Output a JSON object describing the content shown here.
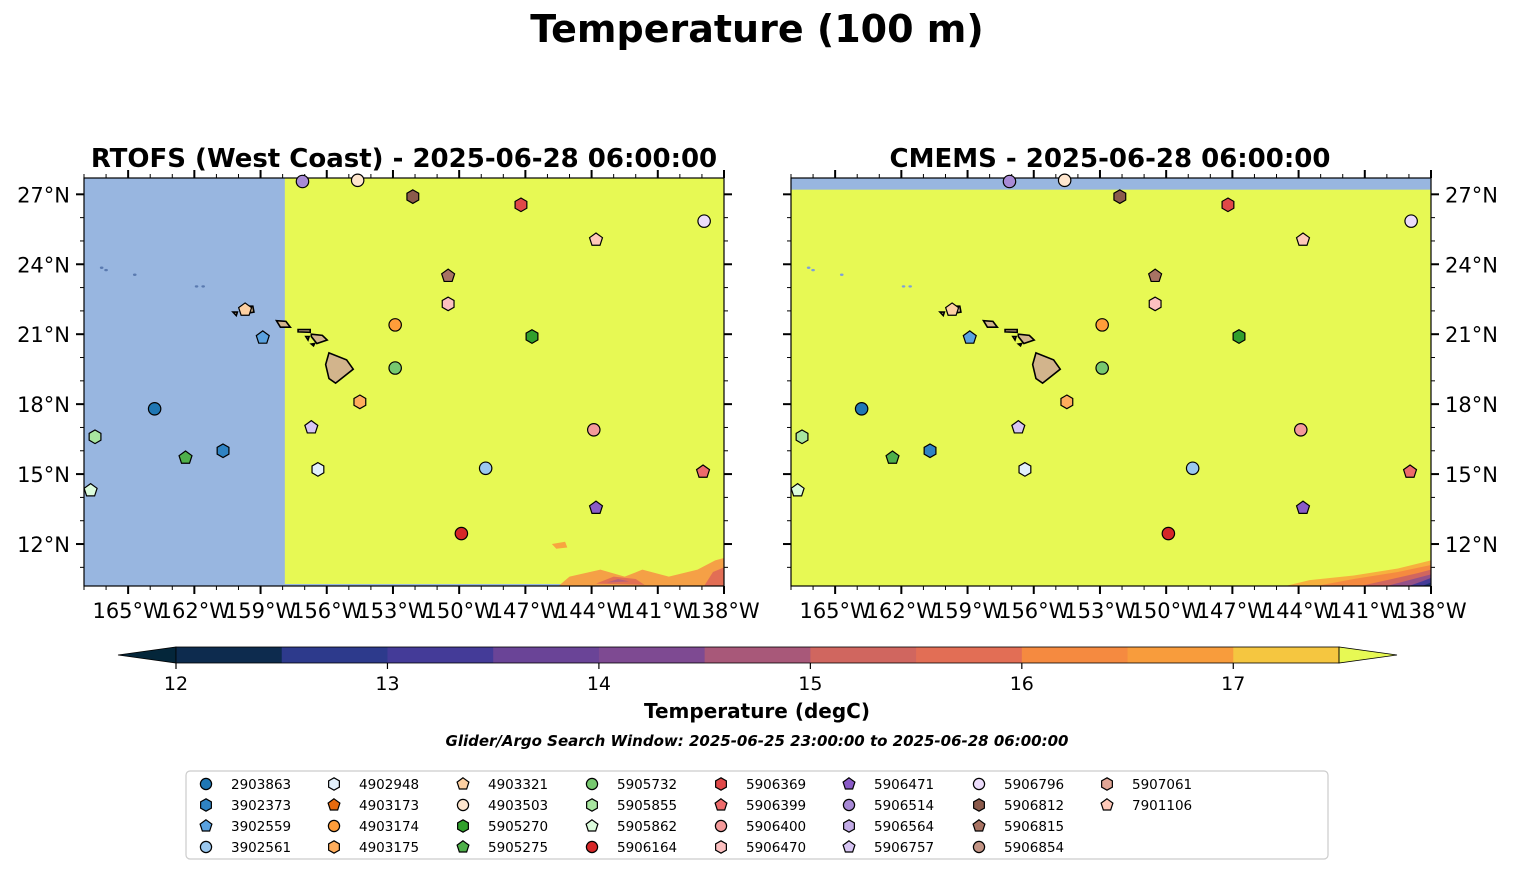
{
  "figure": {
    "title": "Temperature (100 m)",
    "search_window_label": "Glider/Argo Search Window: 2025-06-25 23:00:00 to 2025-06-28 06:00:00"
  },
  "colorbar": {
    "label": "Temperature (degC)",
    "ticks": [
      "12",
      "13",
      "14",
      "15",
      "16",
      "17"
    ],
    "range": [
      11.75,
      17.5
    ],
    "step": 0.5,
    "colors": [
      "#04263a",
      "#0d2b4e",
      "#19326f",
      "#2d3a8c",
      "#443b98",
      "#573f98",
      "#6a4497",
      "#7e4a92",
      "#945188",
      "#a85879",
      "#bd5f6e",
      "#d0665f",
      "#e26e55",
      "#ef7a48",
      "#f58a40",
      "#f89c3c",
      "#f7b03e",
      "#f5c640",
      "#e7f954"
    ],
    "over_color": "#e7f954",
    "under_color": "#04263a",
    "extend": "both"
  },
  "chart_data": [
    {
      "type": "map",
      "title": "RTOFS (West Coast) - 2025-06-28 06:00:00",
      "xlim": [
        -167,
        -138
      ],
      "ylim": [
        10.2,
        27.7
      ],
      "xticks": [
        "165°W",
        "162°W",
        "159°W",
        "156°W",
        "153°W",
        "150°W",
        "147°W",
        "144°W",
        "141°W",
        "138°W"
      ],
      "yticks": [
        "27°N",
        "24°N",
        "21°N",
        "18°N",
        "15°N",
        "12°N"
      ],
      "yaxis_side": "left",
      "no_data_color": "#98b6e0",
      "field_note": "data only east of 157.9°W; ~17.6 degC (yellow) with warmer-than-14 patches near 10-11°N, 145-138°W"
    },
    {
      "type": "map",
      "title": "CMEMS - 2025-06-28 06:00:00",
      "xlim": [
        -167,
        -138
      ],
      "ylim": [
        10.2,
        27.7
      ],
      "xticks": [
        "165°W",
        "162°W",
        "159°W",
        "156°W",
        "153°W",
        "150°W",
        "147°W",
        "144°W",
        "141°W",
        "138°W"
      ],
      "yticks": [
        "27°N",
        "24°N",
        "21°N",
        "18°N",
        "15°N",
        "12°N"
      ],
      "yaxis_side": "right",
      "no_data_color": "#98b6e0",
      "field_note": "data everywhere south of 27.2°N; ~17.6 degC (yellow) with cooler patch in SE corner"
    }
  ],
  "floats": [
    {
      "id": "2903863",
      "marker": "circle",
      "color": "#1f77b4",
      "lon": -163.8,
      "lat": 17.8
    },
    {
      "id": "3902373",
      "marker": "hexagon",
      "color": "#2f83c3",
      "lon": -160.7,
      "lat": 16.0
    },
    {
      "id": "3902559",
      "marker": "pentagon",
      "color": "#5aa2e0",
      "lon": -158.9,
      "lat": 20.85
    },
    {
      "id": "3902561",
      "marker": "circle",
      "color": "#9bc8ef",
      "lon": -148.8,
      "lat": 15.25
    },
    {
      "id": "4902948",
      "marker": "hexagon",
      "color": "#e2f0fb",
      "lon": -156.4,
      "lat": 15.2
    },
    {
      "id": "4903173",
      "marker": "pentagon",
      "color": "#e66a0e",
      "lon": null,
      "lat": null
    },
    {
      "id": "4903174",
      "marker": "circle",
      "color": "#ff9d3a",
      "lon": -152.9,
      "lat": 21.4
    },
    {
      "id": "4903175",
      "marker": "hexagon",
      "color": "#ffad5c",
      "lon": -154.5,
      "lat": 18.1
    },
    {
      "id": "4903321",
      "marker": "pentagon",
      "color": "#fdd0a2",
      "lon": -159.7,
      "lat": 22.05
    },
    {
      "id": "4903503",
      "marker": "circle",
      "color": "#fee6ce",
      "lon": -154.6,
      "lat": 27.6
    },
    {
      "id": "5905270",
      "marker": "hexagon",
      "color": "#31a02c",
      "lon": -146.7,
      "lat": 20.9
    },
    {
      "id": "5905275",
      "marker": "pentagon",
      "color": "#4fb04a",
      "lon": -162.4,
      "lat": 15.7
    },
    {
      "id": "5905732",
      "marker": "circle",
      "color": "#77c96f",
      "lon": -152.9,
      "lat": 19.55
    },
    {
      "id": "5905855",
      "marker": "hexagon",
      "color": "#a8e6a0",
      "lon": -166.5,
      "lat": 16.6
    },
    {
      "id": "5905862",
      "marker": "pentagon",
      "color": "#dcfcdc",
      "lon": -166.7,
      "lat": 14.3
    },
    {
      "id": "5906164",
      "marker": "circle",
      "color": "#d62728",
      "lon": -149.9,
      "lat": 12.45
    },
    {
      "id": "5906369",
      "marker": "hexagon",
      "color": "#e04848",
      "lon": -147.2,
      "lat": 26.55
    },
    {
      "id": "5906399",
      "marker": "pentagon",
      "color": "#ee6b6b",
      "lon": -138.95,
      "lat": 15.1
    },
    {
      "id": "5906400",
      "marker": "circle",
      "color": "#f49a9a",
      "lon": -143.9,
      "lat": 16.9
    },
    {
      "id": "5906470",
      "marker": "hexagon",
      "color": "#fcc0c0",
      "lon": -150.5,
      "lat": 22.3
    },
    {
      "id": "5906471",
      "marker": "pentagon",
      "color": "#8a5bc7",
      "lon": -143.8,
      "lat": 13.55
    },
    {
      "id": "5906514",
      "marker": "circle",
      "color": "#a88ad6",
      "lon": -157.1,
      "lat": 27.55
    },
    {
      "id": "5906564",
      "marker": "hexagon",
      "color": "#c3ace6",
      "lon": null,
      "lat": null
    },
    {
      "id": "5906757",
      "marker": "pentagon",
      "color": "#d7c5f3",
      "lon": -156.7,
      "lat": 17.0
    },
    {
      "id": "5906796",
      "marker": "circle",
      "color": "#ecdcfb",
      "lon": -138.9,
      "lat": 25.85
    },
    {
      "id": "5906812",
      "marker": "hexagon",
      "color": "#8b5a4b",
      "lon": -152.1,
      "lat": 26.9
    },
    {
      "id": "5906815",
      "marker": "pentagon",
      "color": "#a87363",
      "lon": -150.5,
      "lat": 23.5
    },
    {
      "id": "5906854",
      "marker": "circle",
      "color": "#c29485",
      "lon": null,
      "lat": null
    },
    {
      "id": "5907061",
      "marker": "hexagon",
      "color": "#e2a696",
      "lon": null,
      "lat": null
    },
    {
      "id": "7901106",
      "marker": "pentagon",
      "color": "#ffc9b9",
      "lon": -143.8,
      "lat": 25.05
    }
  ]
}
